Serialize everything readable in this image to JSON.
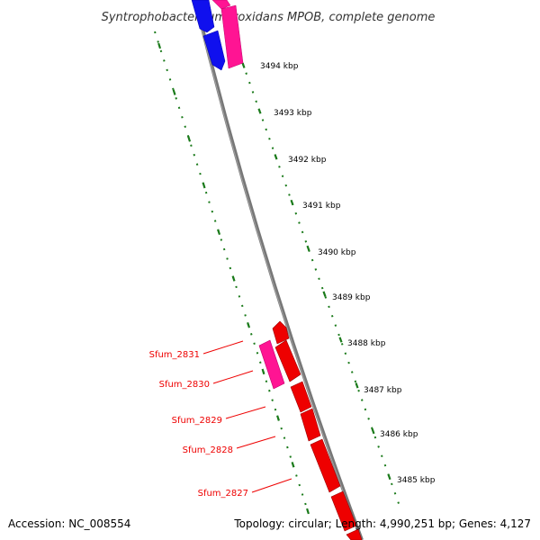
{
  "title": "Syntrophobacter fumaroxidans MPOB, complete genome",
  "accession": "Accession: NC_008554",
  "summary": "Topology: circular; Length: 4,990,251 bp; Genes: 4,127",
  "ruler": {
    "unit": "kbp",
    "labels": [
      "3494 kbp",
      "3493 kbp",
      "3492 kbp",
      "3491 kbp",
      "3490 kbp",
      "3489 kbp",
      "3488 kbp",
      "3487 kbp",
      "3486 kbp",
      "3485 kbp"
    ]
  },
  "genes": [
    {
      "label": "Sfum_2831"
    },
    {
      "label": "Sfum_2830"
    },
    {
      "label": "Sfum_2829"
    },
    {
      "label": "Sfum_2828"
    },
    {
      "label": "Sfum_2827"
    }
  ],
  "colors": {
    "backbone": "#777777",
    "gene_red": "#ee0000",
    "gene_magenta": "#ff1493",
    "gene_blue": "#1010ee",
    "ruler_dots": "#1a7a1a",
    "label_red": "#ee0000"
  }
}
